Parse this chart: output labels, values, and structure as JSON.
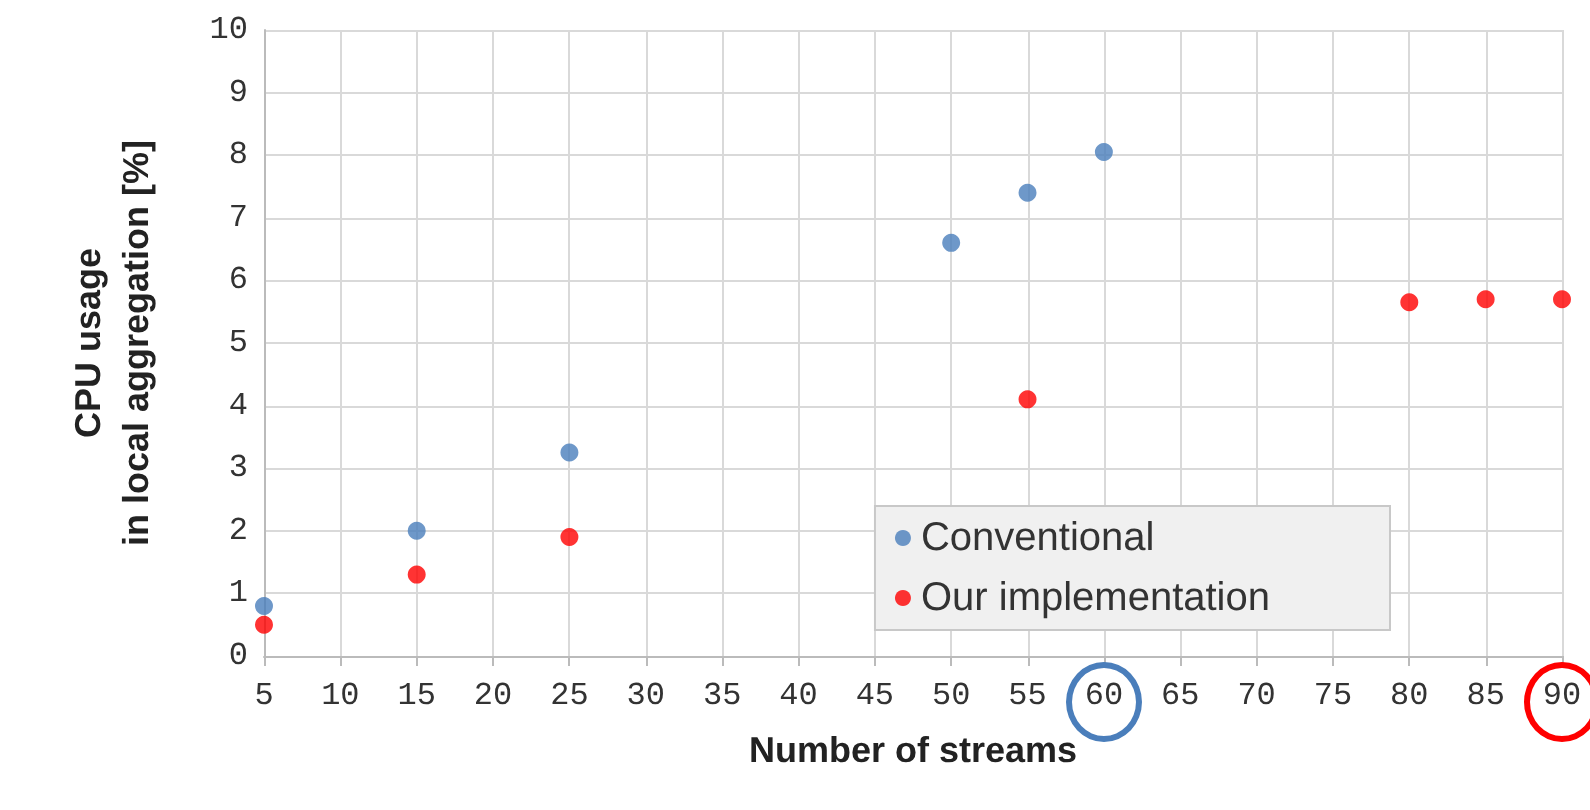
{
  "chart_data": {
    "type": "scatter",
    "xlabel": "Number of streams",
    "ylabel": "CPU usage\nin local aggregation [%]",
    "xlim": [
      5,
      90
    ],
    "xticks": [
      5,
      10,
      15,
      20,
      25,
      30,
      35,
      40,
      45,
      50,
      55,
      60,
      65,
      70,
      75,
      80,
      85,
      90
    ],
    "ylim": [
      0,
      10
    ],
    "yticks": [
      0,
      1,
      2,
      3,
      4,
      5,
      6,
      7,
      8,
      9,
      10
    ],
    "grid": true,
    "legend": "bottom right",
    "marker": "circle",
    "series": [
      {
        "name": "Conventional",
        "color": "#4a7ebb",
        "x": [
          5,
          15,
          25,
          50,
          55,
          60
        ],
        "values": [
          0.8,
          2.0,
          3.25,
          6.6,
          7.4,
          8.05
        ]
      },
      {
        "name": "Our implementation",
        "color": "#ff0000",
        "x": [
          5,
          15,
          25,
          55,
          80,
          85,
          90
        ],
        "values": [
          0.5,
          1.3,
          1.9,
          4.1,
          5.65,
          5.7,
          5.7
        ]
      }
    ]
  }
}
